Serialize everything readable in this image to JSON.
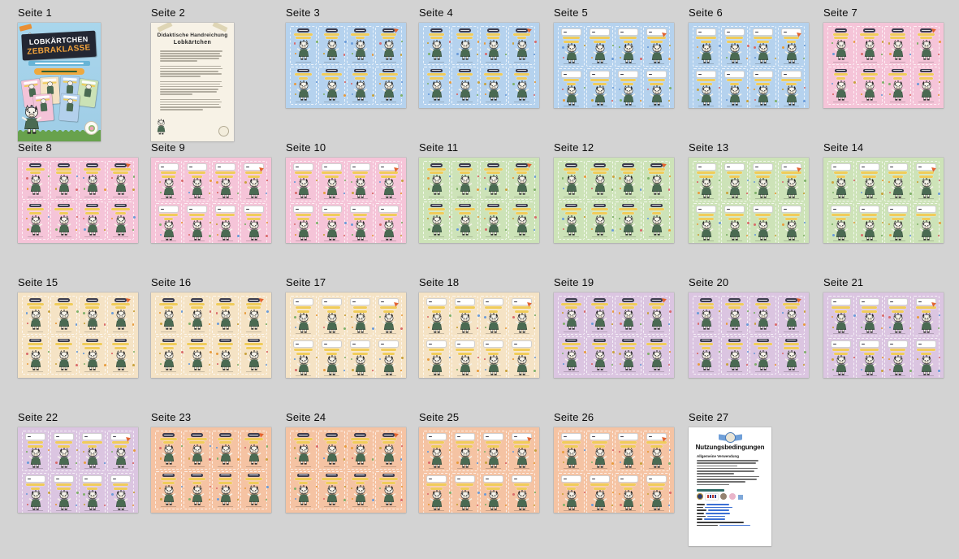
{
  "ui": {
    "background": "#d3d3d3",
    "label_color": "#0a0a0a"
  },
  "pages": [
    {
      "label": "Seite 1",
      "type": "cover"
    },
    {
      "label": "Seite 2",
      "type": "handout"
    },
    {
      "label": "Seite 3",
      "type": "cards",
      "color": "blue",
      "variant": "banner"
    },
    {
      "label": "Seite 4",
      "type": "cards",
      "color": "blue",
      "variant": "banner"
    },
    {
      "label": "Seite 5",
      "type": "cards",
      "color": "blue",
      "variant": "namefield"
    },
    {
      "label": "Seite 6",
      "type": "cards",
      "color": "blue",
      "variant": "namefield"
    },
    {
      "label": "Seite 7",
      "type": "cards",
      "color": "pink",
      "variant": "banner"
    },
    {
      "label": "Seite 8",
      "type": "cards",
      "color": "pink",
      "variant": "banner"
    },
    {
      "label": "Seite 9",
      "type": "cards",
      "color": "pink",
      "variant": "namefield"
    },
    {
      "label": "Seite 10",
      "type": "cards",
      "color": "pink",
      "variant": "namefield"
    },
    {
      "label": "Seite 11",
      "type": "cards",
      "color": "green",
      "variant": "banner"
    },
    {
      "label": "Seite 12",
      "type": "cards",
      "color": "green",
      "variant": "banner"
    },
    {
      "label": "Seite 13",
      "type": "cards",
      "color": "green",
      "variant": "namefield"
    },
    {
      "label": "Seite 14",
      "type": "cards",
      "color": "green",
      "variant": "namefield"
    },
    {
      "label": "Seite 15",
      "type": "cards",
      "color": "tan",
      "variant": "banner"
    },
    {
      "label": "Seite 16",
      "type": "cards",
      "color": "tan",
      "variant": "banner"
    },
    {
      "label": "Seite 17",
      "type": "cards",
      "color": "tan",
      "variant": "namefield"
    },
    {
      "label": "Seite 18",
      "type": "cards",
      "color": "tan",
      "variant": "namefield"
    },
    {
      "label": "Seite 19",
      "type": "cards",
      "color": "purple",
      "variant": "banner"
    },
    {
      "label": "Seite 20",
      "type": "cards",
      "color": "purple",
      "variant": "banner"
    },
    {
      "label": "Seite 21",
      "type": "cards",
      "color": "purple",
      "variant": "namefield"
    },
    {
      "label": "Seite 22",
      "type": "cards",
      "color": "purple",
      "variant": "namefield"
    },
    {
      "label": "Seite 23",
      "type": "cards",
      "color": "peach",
      "variant": "banner"
    },
    {
      "label": "Seite 24",
      "type": "cards",
      "color": "peach",
      "variant": "banner"
    },
    {
      "label": "Seite 25",
      "type": "cards",
      "color": "peach",
      "variant": "namefield"
    },
    {
      "label": "Seite 26",
      "type": "cards",
      "color": "peach",
      "variant": "namefield"
    },
    {
      "label": "Seite 27",
      "type": "terms"
    }
  ],
  "page_colors": {
    "blue": "#b5d2ee",
    "pink": "#f5c4d8",
    "green": "#cde3b8",
    "tan": "#f5e3c5",
    "purple": "#dbc5e1",
    "peach": "#f5c3a3"
  },
  "accent_colors": {
    "card_banner": "#3c3c4d",
    "card_title_yellow": "#f0cc5a",
    "zebra_outfit_green": "#4a6a52",
    "cover_banner_dark": "#232733",
    "cover_orange": "#f2a33c",
    "grass_green": "#68a24d",
    "link_blue": "#3b6fd4"
  },
  "cover": {
    "title_line1": "LOBKÄRTCHEN",
    "title_line2": "ZEBRAKLASSE"
  },
  "handout": {
    "title": "Didaktische Handreichung",
    "subtitle": "Lobkärtchen"
  },
  "terms": {
    "title": "Nutzungsbedingungen",
    "section1_heading": "Allgemeine Verwendung"
  },
  "icons": {
    "zebra-mascot-icon": "zebra character in green outfit",
    "round-badge-icon": "circular sticker badge",
    "tape-icon": "adhesive tape strips",
    "winged-badge-icon": "blue winged logo badge"
  }
}
